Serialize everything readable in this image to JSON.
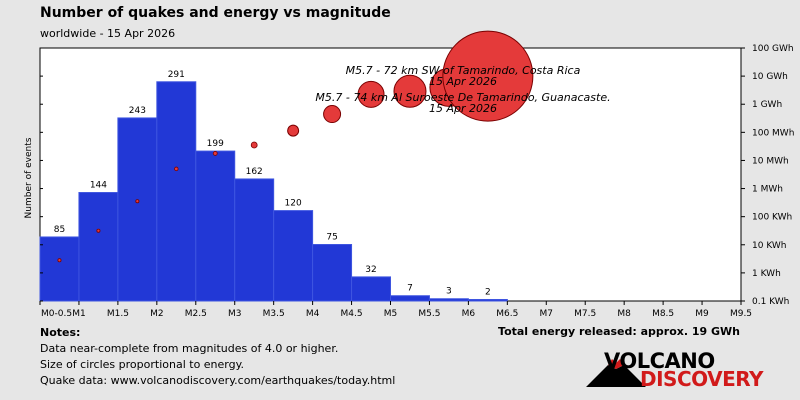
{
  "header": {
    "title": "Number of quakes and energy vs magnitude",
    "subtitle": "worldwide - 15 Apr 2026"
  },
  "chart_data": {
    "type": "bar",
    "ylabel": "Number of events",
    "categories": [
      "M0-0.5",
      "M1",
      "M1.5",
      "M2",
      "M2.5",
      "M3",
      "M3.5",
      "M4",
      "M4.5",
      "M5",
      "M5.5",
      "M6",
      "M6.5",
      "M7",
      "M7.5",
      "M8",
      "M8.5",
      "M9",
      "M9.5"
    ],
    "bars": [
      {
        "label": "85",
        "value": 85
      },
      {
        "label": "144",
        "value": 144
      },
      {
        "label": "243",
        "value": 243
      },
      {
        "label": "291",
        "value": 291
      },
      {
        "label": "199",
        "value": 199
      },
      {
        "label": "162",
        "value": 162
      },
      {
        "label": "120",
        "value": 120
      },
      {
        "label": "75",
        "value": 75
      },
      {
        "label": "32",
        "value": 32
      },
      {
        "label": "7",
        "value": 7
      },
      {
        "label": "3",
        "value": 3
      },
      {
        "label": "2",
        "value": 2
      }
    ],
    "ylim": [
      0,
      300
    ],
    "energy_axis": {
      "labels": [
        "100 GWh",
        "10 GWh",
        "1 GWh",
        "100 MWh",
        "10 MWh",
        "1 MWh",
        "100 KWh",
        "10 KWh",
        "1 KWh",
        "0.1 KWh"
      ],
      "log_wh_range": [
        2,
        11
      ]
    },
    "energy_points": [
      {
        "bin": 0,
        "log_wh": 3.45,
        "r": 1.6
      },
      {
        "bin": 1,
        "log_wh": 4.5,
        "r": 1.6
      },
      {
        "bin": 2,
        "log_wh": 5.55,
        "r": 1.6
      },
      {
        "bin": 3,
        "log_wh": 6.7,
        "r": 1.8
      },
      {
        "bin": 4,
        "log_wh": 7.25,
        "r": 2
      },
      {
        "bin": 5,
        "log_wh": 7.55,
        "r": 3
      },
      {
        "bin": 6,
        "log_wh": 8.06,
        "r": 5.5
      },
      {
        "bin": 7,
        "log_wh": 8.65,
        "r": 8.5
      },
      {
        "bin": 8,
        "log_wh": 9.35,
        "r": 13
      },
      {
        "bin": 9,
        "log_wh": 9.46,
        "r": 16
      },
      {
        "bin": 10,
        "log_wh": 9.6,
        "r": 19
      },
      {
        "bin": 11,
        "log_wh": 10.0,
        "r": 45
      }
    ],
    "annotations": [
      {
        "line1": "M5.7 - 72 km SW of Tamarindo, Costa Rica",
        "line2": "15 Apr 2026"
      },
      {
        "line1": "M5.7 - 74 km Al Suroeste De Tamarindo, Guanacaste.",
        "line2": "15 Apr 2026"
      }
    ],
    "colors": {
      "bar": "#2238d6",
      "bar_edge": "#3e55e0",
      "bubble": "#e43a3a",
      "bubble_edge": "#7a0000",
      "plot_bg": "#ffffff"
    }
  },
  "notes": {
    "heading": "Notes:",
    "lines": [
      "Data near-complete from magnitudes of 4.0 or higher.",
      "Size of circles proportional to energy.",
      "Quake data: www.volcanodiscovery.com/earthquakes/today.html"
    ]
  },
  "total": "Total energy released: approx. 19 GWh",
  "logo": {
    "line1": "VOLCANO",
    "line2": "DISCOVERY"
  }
}
